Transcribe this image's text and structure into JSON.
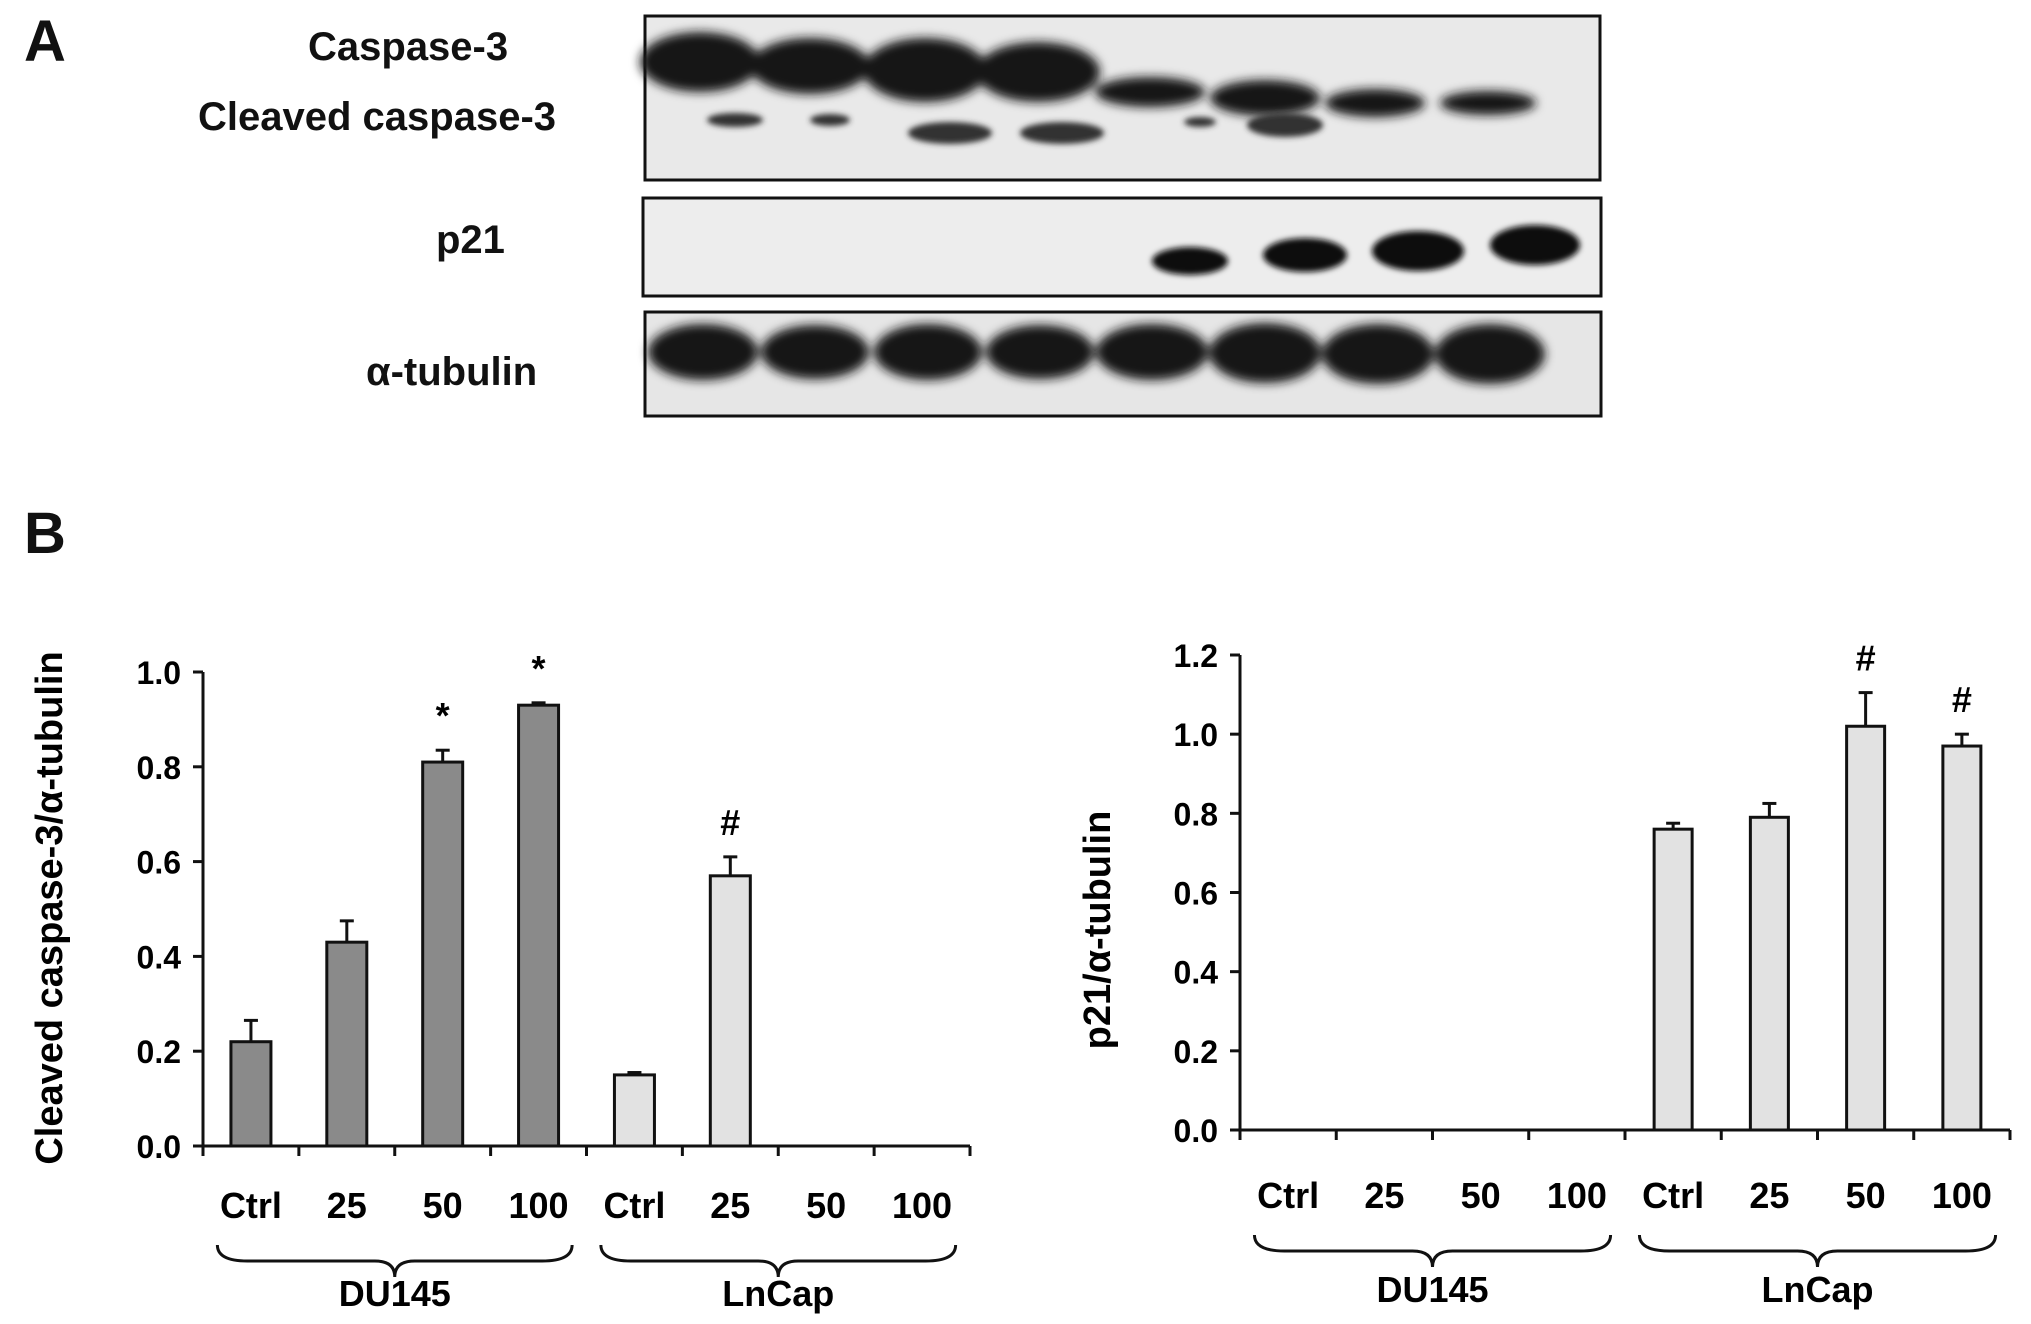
{
  "figure": {
    "panel_a_label": "A",
    "panel_b_label": "B",
    "blot_labels": {
      "caspase3": "Caspase-3",
      "cleaved_caspase3": "Cleaved caspase-3",
      "p21": "p21",
      "tubulin": "α-tubulin"
    }
  },
  "chart_data": [
    {
      "type": "bar",
      "ylabel": "Cleaved caspase-3/α-tubulin",
      "ylim": [
        0,
        1.0
      ],
      "yticks": [
        "0.0",
        "0.2",
        "0.4",
        "0.6",
        "0.8",
        "1.0"
      ],
      "categories": [
        "Ctrl",
        "25",
        "50",
        "100",
        "Ctrl",
        "25",
        "50",
        "100"
      ],
      "groups": [
        {
          "name": "DU145",
          "indices": [
            0,
            1,
            2,
            3
          ]
        },
        {
          "name": "LnCap",
          "indices": [
            4,
            5,
            6,
            7
          ]
        }
      ],
      "values": [
        0.22,
        0.43,
        0.81,
        0.93,
        0.15,
        0.57,
        null,
        null
      ],
      "errors": [
        0.045,
        0.045,
        0.025,
        0.005,
        0.005,
        0.04,
        null,
        null
      ],
      "bar_colors": [
        "#8a8a8a",
        "#8a8a8a",
        "#8a8a8a",
        "#8a8a8a",
        "#e2e2e2",
        "#e2e2e2",
        "#e2e2e2",
        "#e2e2e2"
      ],
      "annotations": [
        "",
        "",
        "*",
        "*",
        "",
        "#",
        "",
        ""
      ]
    },
    {
      "type": "bar",
      "ylabel": "p21/α-tubulin",
      "ylim": [
        0,
        1.2
      ],
      "yticks": [
        "0.0",
        "0.2",
        "0.4",
        "0.6",
        "0.8",
        "1.0",
        "1.2"
      ],
      "categories": [
        "Ctrl",
        "25",
        "50",
        "100",
        "Ctrl",
        "25",
        "50",
        "100"
      ],
      "groups": [
        {
          "name": "DU145",
          "indices": [
            0,
            1,
            2,
            3
          ]
        },
        {
          "name": "LnCap",
          "indices": [
            4,
            5,
            6,
            7
          ]
        }
      ],
      "values": [
        null,
        null,
        null,
        null,
        0.76,
        0.79,
        1.02,
        0.97
      ],
      "errors": [
        null,
        null,
        null,
        null,
        0.015,
        0.035,
        0.085,
        0.03
      ],
      "bar_colors": [
        "#8a8a8a",
        "#8a8a8a",
        "#8a8a8a",
        "#8a8a8a",
        "#e2e2e2",
        "#e2e2e2",
        "#e2e2e2",
        "#e2e2e2"
      ],
      "annotations": [
        "",
        "",
        "",
        "",
        "",
        "",
        "#",
        "#"
      ]
    }
  ]
}
